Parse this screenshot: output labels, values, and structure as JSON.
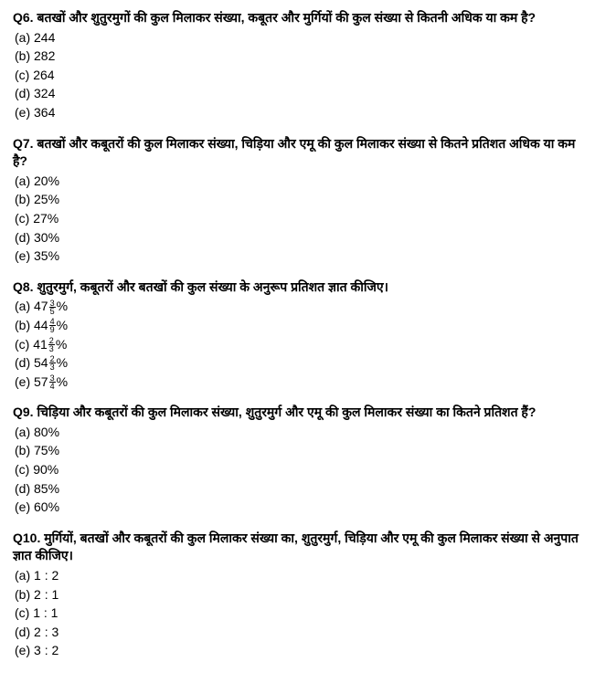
{
  "questions": [
    {
      "num": "Q6.",
      "text": "बतखों और शुतुरमुगों की कुल मिलाकर संख्या, कबूतर और मुर्गियों की कुल संख्या से कितनी अधिक या कम है?",
      "options": [
        {
          "label": "(a)",
          "text": "244"
        },
        {
          "label": "(b)",
          "text": "282"
        },
        {
          "label": "(c)",
          "text": "264"
        },
        {
          "label": "(d)",
          "text": "324"
        },
        {
          "label": "(e)",
          "text": "364"
        }
      ]
    },
    {
      "num": "Q7.",
      "text": "बतखों और कबूतरों की कुल मिलाकर संख्या, चिड़िया और एमू की कुल मिलाकर संख्या से कितने प्रतिशत अधिक या कम है?",
      "options": [
        {
          "label": "(a)",
          "text": "20%"
        },
        {
          "label": "(b)",
          "text": "25%"
        },
        {
          "label": "(c)",
          "text": "27%"
        },
        {
          "label": "(d)",
          "text": "30%"
        },
        {
          "label": "(e)",
          "text": "35%"
        }
      ]
    },
    {
      "num": "Q8.",
      "text": "शुतुरमुर्ग, कबूतरों और बतखों की कुल संख्या के अनुरूप प्रतिशत ज्ञात कीजिए।",
      "options": [
        {
          "label": "(a)",
          "whole": "47",
          "num": "3",
          "den": "5",
          "suffix": "%"
        },
        {
          "label": "(b)",
          "whole": "44",
          "num": "4",
          "den": "9",
          "suffix": "%"
        },
        {
          "label": "(c)",
          "whole": "41",
          "num": "2",
          "den": "3",
          "suffix": "%"
        },
        {
          "label": "(d)",
          "whole": "54",
          "num": "2",
          "den": "3",
          "suffix": "%"
        },
        {
          "label": "(e)",
          "whole": "57",
          "num": "3",
          "den": "4",
          "suffix": "%"
        }
      ]
    },
    {
      "num": "Q9.",
      "text": "चिड़िया और कबूतरों की कुल मिलाकर संख्या, शुतुरमुर्ग और एमू की कुल मिलाकर संख्या का कितने प्रतिशत हैं?",
      "options": [
        {
          "label": "(a)",
          "text": "80%"
        },
        {
          "label": "(b)",
          "text": "75%"
        },
        {
          "label": "(c)",
          "text": "90%"
        },
        {
          "label": "(d)",
          "text": "85%"
        },
        {
          "label": "(e)",
          "text": "60%"
        }
      ]
    },
    {
      "num": "Q10.",
      "text": "मुर्गियों, बतखों और कबूतरों की कुल मिलाकर संख्या का, शुतुरमुर्ग, चिड़िया और एमू की कुल मिलाकर संख्या से अनुपात ज्ञात कीजिए।",
      "options": [
        {
          "label": "(a)",
          "text": "1 : 2"
        },
        {
          "label": "(b)",
          "text": "2 : 1"
        },
        {
          "label": "(c)",
          "text": "1 : 1"
        },
        {
          "label": "(d)",
          "text": "2 : 3"
        },
        {
          "label": "(e)",
          "text": "3 : 2"
        }
      ]
    }
  ]
}
